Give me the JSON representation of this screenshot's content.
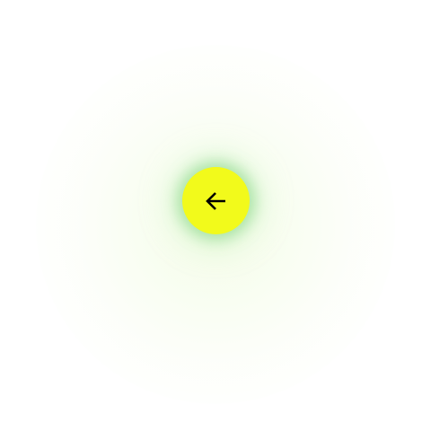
{
  "screen": {
    "background_color": "#ffffff",
    "halo_color": "#f4fce6"
  },
  "back_button": {
    "icon": "arrow-left-icon",
    "fill_color": "#f2fa1b",
    "glow_color": "#78d278",
    "icon_color": "#000000"
  }
}
